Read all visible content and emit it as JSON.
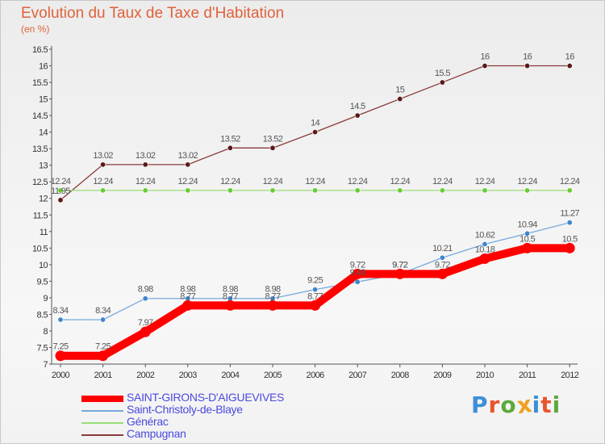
{
  "title": "Evolution du Taux de Taxe d'Habitation",
  "subtitle": "(en %)",
  "logo": {
    "text": "Proxiti",
    "colors": [
      "#3d8fd6",
      "#e8552d",
      "#5aaa3a",
      "#f0a020",
      "#3d8fd6",
      "#e8552d",
      "#5aaa3a"
    ]
  },
  "chart_data": {
    "type": "line",
    "title": "Evolution du Taux de Taxe d'Habitation",
    "subtitle": "(en %)",
    "x": [
      "2000",
      "2001",
      "2002",
      "2003",
      "2004",
      "2005",
      "2006",
      "2007",
      "2008",
      "2009",
      "2010",
      "2011",
      "2012"
    ],
    "ylim": [
      7,
      16.5
    ],
    "yticks": [
      "7",
      "7.5",
      "8",
      "8.5",
      "9",
      "9.5",
      "10",
      "10.5",
      "11",
      "11.5",
      "12",
      "12.5",
      "13",
      "13.5",
      "14",
      "14.5",
      "15",
      "15.5",
      "16",
      "16.5"
    ],
    "grid": false,
    "legend_position": "bottom-left",
    "series": [
      {
        "name": "SAINT-GIRONS-D'AIGUEVIVES",
        "color": "#ff0000",
        "marker": "#ff0000",
        "emphasis": true,
        "values": [
          7.25,
          7.25,
          7.97,
          8.77,
          8.77,
          8.77,
          8.77,
          9.72,
          9.72,
          9.72,
          10.18,
          10.5,
          10.5
        ],
        "labels": [
          "7.25",
          "7.25",
          "7.97",
          "8.77",
          "8.77",
          "8.77",
          "8.77",
          "9.72",
          "9.72",
          "9.72",
          "10.18",
          "10.5",
          "10.5"
        ]
      },
      {
        "name": "Saint-Christoly-de-Blaye",
        "color": "#77aadd",
        "marker": "#3d86cf",
        "values": [
          8.34,
          8.34,
          8.98,
          8.98,
          8.98,
          8.98,
          9.25,
          9.48,
          9.72,
          10.21,
          10.62,
          10.94,
          11.27
        ],
        "labels": [
          "8.34",
          "8.34",
          "8.98",
          "8.98",
          "8.98",
          "8.98",
          "9.25",
          "9.48",
          "9.72",
          "10.21",
          "10.62",
          "10.94",
          "11.27"
        ]
      },
      {
        "name": "Générac",
        "color": "#99dd77",
        "marker": "#66cc33",
        "values": [
          12.24,
          12.24,
          12.24,
          12.24,
          12.24,
          12.24,
          12.24,
          12.24,
          12.24,
          12.24,
          12.24,
          12.24,
          12.24
        ],
        "labels": [
          "12.24",
          "12.24",
          "12.24",
          "12.24",
          "12.24",
          "12.24",
          "12.24",
          "12.24",
          "12.24",
          "12.24",
          "12.24",
          "12.24",
          "12.24"
        ]
      },
      {
        "name": "Campugnan",
        "color": "#8a3a3a",
        "marker": "#5a1a1a",
        "values": [
          11.95,
          13.02,
          13.02,
          13.02,
          13.52,
          13.52,
          14,
          14.5,
          15,
          15.5,
          16,
          16,
          16
        ],
        "labels": [
          "11.95",
          "13.02",
          "13.02",
          "13.02",
          "13.52",
          "13.52",
          "14",
          "14.5",
          "15",
          "15.5",
          "16",
          "16",
          "16"
        ]
      }
    ]
  }
}
